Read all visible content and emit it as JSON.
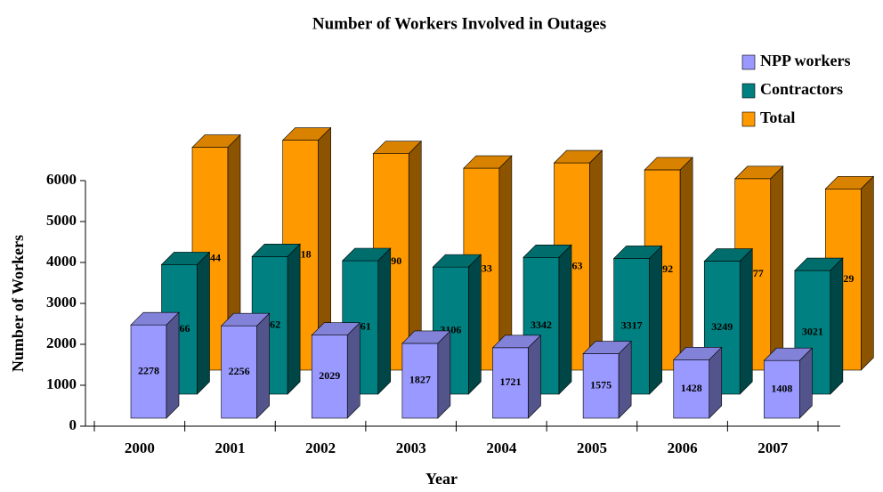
{
  "chart_data": {
    "type": "bar3d",
    "title": "Number of Workers Involved in Outages",
    "x_label": "Year",
    "y_label": "Number of Workers",
    "categories": [
      "2000",
      "2001",
      "2002",
      "2003",
      "2004",
      "2005",
      "2006",
      "2007"
    ],
    "series": [
      {
        "name": "NPP workers",
        "color": "#9999ff",
        "values": [
          2278,
          2256,
          2029,
          1827,
          1721,
          1575,
          1428,
          1408
        ]
      },
      {
        "name": "Contractors",
        "color": "#008080",
        "values": [
          3166,
          3362,
          3261,
          3106,
          3342,
          3317,
          3249,
          3021
        ]
      },
      {
        "name": "Total",
        "color": "#ff9900",
        "values": [
          5444,
          5618,
          5290,
          4933,
          5063,
          4892,
          4677,
          4429
        ]
      }
    ],
    "ylim": [
      0,
      6000
    ],
    "yticks": [
      0,
      1000,
      2000,
      3000,
      4000,
      5000,
      6000
    ],
    "legend": "top-right"
  }
}
